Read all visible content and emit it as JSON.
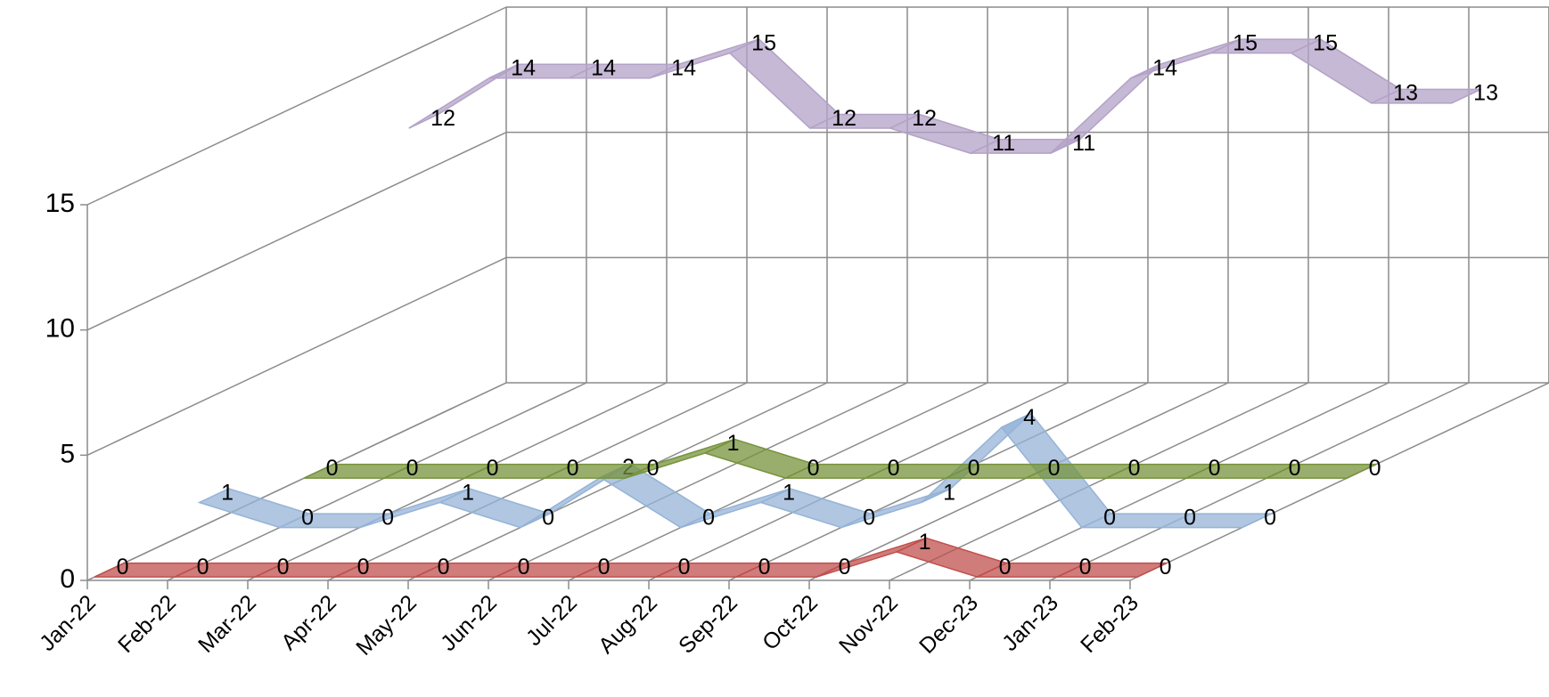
{
  "chart_data": {
    "type": "line3d",
    "categories": [
      "Jan-22",
      "Feb-22",
      "Mar-22",
      "Apr-22",
      "May-22",
      "Jun-22",
      "Jul-22",
      "Aug-22",
      "Sep-22",
      "Oct-22",
      "Nov-22",
      "Dec-23",
      "Jan-23",
      "Feb-23"
    ],
    "series": [
      {
        "color": "#c0504d",
        "values": [
          0,
          0,
          0,
          0,
          0,
          0,
          0,
          0,
          0,
          0,
          1,
          0,
          0,
          0
        ]
      },
      {
        "color": "#95b3d7",
        "values": [
          1,
          0,
          0,
          1,
          0,
          2,
          0,
          1,
          0,
          1,
          4,
          0,
          0,
          0
        ]
      },
      {
        "color": "#77933c",
        "values": [
          0,
          0,
          0,
          0,
          0,
          1,
          0,
          0,
          0,
          0,
          0,
          0,
          0,
          0
        ]
      },
      {
        "color": "#b3a2c7",
        "values": [
          12,
          14,
          14,
          14,
          15,
          12,
          12,
          11,
          11,
          14,
          15,
          15,
          13,
          13
        ]
      }
    ],
    "ylim": [
      0,
      15
    ],
    "yticks": [
      0,
      5,
      10,
      15
    ],
    "grid": true
  }
}
